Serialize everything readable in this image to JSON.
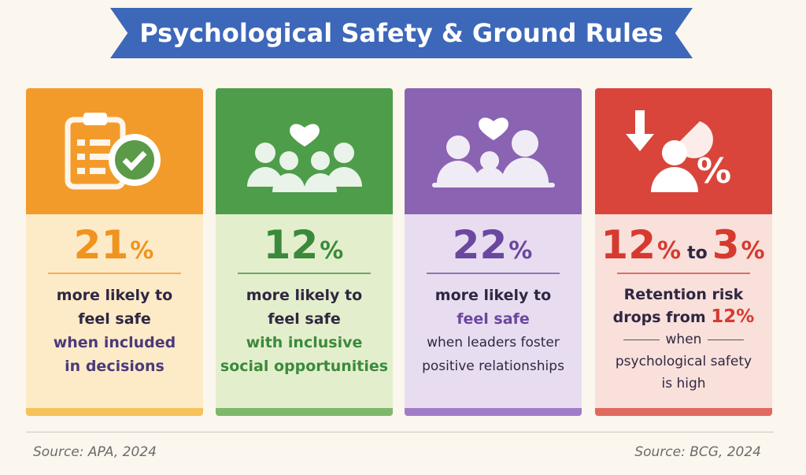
{
  "header": {
    "title": "Psychological Safety & Ground Rules"
  },
  "cards": [
    {
      "stat": [
        "21",
        "%"
      ],
      "lines": [
        "more likely to",
        "feel safe",
        "when included",
        "in decisions"
      ]
    },
    {
      "stat": [
        "12",
        "%"
      ],
      "lines": [
        "more likely to",
        "feel safe",
        "with inclusive",
        "social opportunities"
      ]
    },
    {
      "stat": [
        "22",
        "%"
      ],
      "lines": [
        "more likely to",
        "feel safe",
        "when leaders foster",
        "positive relationships"
      ]
    },
    {
      "stat": [
        "12",
        "%",
        "to",
        "3",
        "%"
      ],
      "lines": [
        "Retention risk",
        "drops from",
        "12%",
        "when",
        "psychological safety",
        "is high"
      ]
    }
  ],
  "sources": [
    "Source: APA, 2024",
    "Source: BCG, 2024"
  ]
}
